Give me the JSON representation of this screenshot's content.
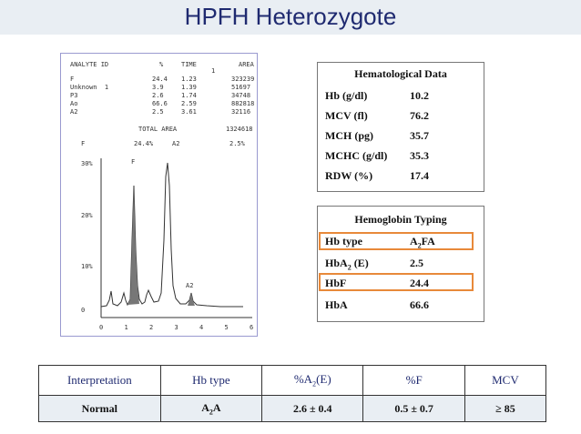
{
  "title": "HPFH Heterozygote",
  "report": {
    "header": [
      "ANALYTE ID",
      "%",
      "TIME",
      "AREA"
    ],
    "rows": [
      {
        "id": "F",
        "pct": "24.4",
        "time": "1.23",
        "area": "323239"
      },
      {
        "id": "Unknown  1",
        "pct": "3.9",
        "time": "1.39",
        "area": "51697"
      },
      {
        "id": "P3",
        "pct": "2.6",
        "time": "1.74",
        "area": "34748"
      },
      {
        "id": "Ao",
        "pct": "66.6",
        "time": "2.59",
        "area": "882818"
      },
      {
        "id": "A2",
        "pct": "2.5",
        "time": "3.61",
        "area": "32116"
      }
    ],
    "total_label": "TOTAL AREA",
    "total_value": "1324618",
    "summary": {
      "f": "F",
      "f_pct": "24.4%",
      "a2": "A2",
      "a2_pct": "2.5%"
    },
    "y_ticks": [
      "30%",
      "20%",
      "10%",
      "0"
    ],
    "x_ticks": [
      "0",
      "1",
      "2",
      "3",
      "4",
      "5",
      "6"
    ],
    "peak_labels": {
      "f": "F",
      "a2": "A2"
    },
    "stray_mark": "1"
  },
  "hematological": {
    "heading": "Hematological Data",
    "rows": [
      {
        "label": "Hb (g/dl)",
        "value": "10.2"
      },
      {
        "label": "MCV (fl)",
        "value": "76.2"
      },
      {
        "label": "MCH (pg)",
        "value": "35.7"
      },
      {
        "label": "MCHC (g/dl)",
        "value": "35.3"
      },
      {
        "label": "RDW (%)",
        "value": "17.4"
      }
    ]
  },
  "hb_typing": {
    "heading": "Hemoglobin Typing",
    "hbtype": {
      "label": "Hb type",
      "value_pre": "A",
      "value_sub": "2",
      "value_post": "FA"
    },
    "hba2": {
      "label_pre": "HbA",
      "label_sub": "2",
      "label_post": " (E)",
      "value": "2.5"
    },
    "hbf": {
      "label": "HbF",
      "value": "24.4"
    },
    "hba": {
      "label": "HbA",
      "value": "66.6"
    }
  },
  "interpretation": {
    "headers": {
      "interp": "Interpretation",
      "hbtype": "Hb type",
      "a2_pre": "%A",
      "a2_sub": "2",
      "a2_post": "(E)",
      "f": "%F",
      "mcv": "MCV"
    },
    "row": {
      "interp": "Normal",
      "hbtype_pre": "A",
      "hbtype_sub": "2",
      "hbtype_post": "A",
      "a2": "2.6 ±  0.4",
      "f": "0.5 ±  0.7",
      "mcv": "≥ 85"
    }
  }
}
